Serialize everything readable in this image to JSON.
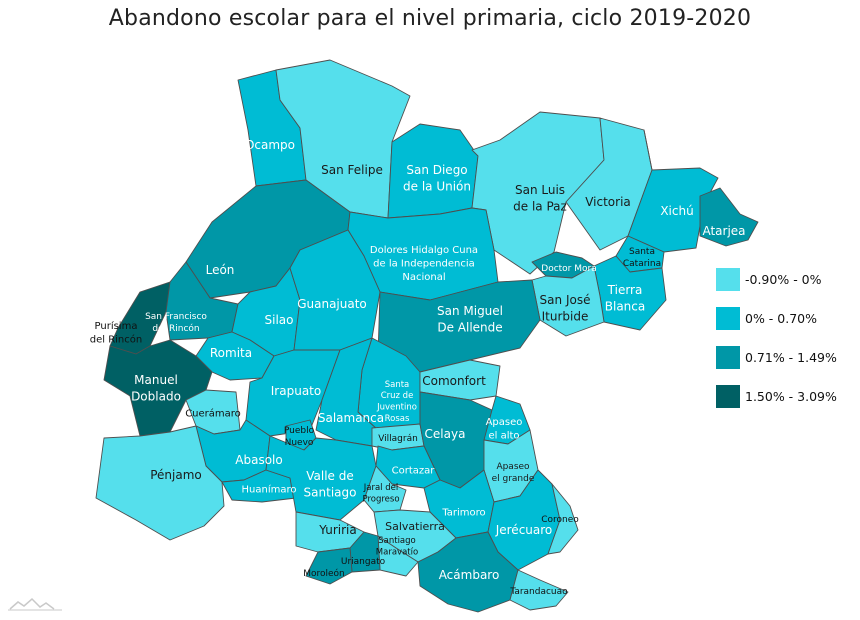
{
  "title": "Abandono escolar para el nivel primaria, ciclo 2019-2020",
  "legend": [
    {
      "label": "-0.90% - 0%",
      "color": "#55dfec"
    },
    {
      "label": "0% - 0.70%",
      "color": "#00bcd4"
    },
    {
      "label": "0.71% - 1.49%",
      "color": "#0097a7"
    },
    {
      "label": "1.50% - 3.09%",
      "color": "#006064"
    }
  ],
  "municipalities": [
    {
      "id": "ocampo",
      "label": "Ocampo",
      "range": 1
    },
    {
      "id": "san-felipe",
      "label": "San Felipe",
      "range": 0
    },
    {
      "id": "san-diego",
      "label": "San Diego\nde la Unión",
      "range": 1
    },
    {
      "id": "san-luis-paz",
      "label": "San Luis\nde la Paz",
      "range": 0
    },
    {
      "id": "victoria",
      "label": "Victoria",
      "range": 0
    },
    {
      "id": "xichu",
      "label": "Xichú",
      "range": 1
    },
    {
      "id": "atarjea",
      "label": "Atarjea",
      "range": 2
    },
    {
      "id": "leon",
      "label": "León",
      "range": 2
    },
    {
      "id": "dolores-hidalgo",
      "label": "Dolores Hidalgo Cuna\nde la Independencia\nNacional",
      "range": 1
    },
    {
      "id": "doctor-mora",
      "label": "Doctor Mora",
      "range": 2
    },
    {
      "id": "santa-catarina",
      "label": "Santa\nCatarina",
      "range": 1
    },
    {
      "id": "tierra-blanca",
      "label": "Tierra\nBlanca",
      "range": 1
    },
    {
      "id": "san-jose-iturbide",
      "label": "San José\nIturbide",
      "range": 0
    },
    {
      "id": "purisima",
      "label": "Purísima\ndel Rincón",
      "range": 3
    },
    {
      "id": "san-francisco",
      "label": "San Francisco\ndel Rincón",
      "range": 2
    },
    {
      "id": "silao",
      "label": "Silao",
      "range": 1
    },
    {
      "id": "guanajuato",
      "label": "Guanajuato",
      "range": 1
    },
    {
      "id": "san-miguel",
      "label": "San Miguel\nDe Allende",
      "range": 2
    },
    {
      "id": "romita",
      "label": "Romita",
      "range": 1
    },
    {
      "id": "manuel-doblado",
      "label": "Manuel\nDoblado",
      "range": 3
    },
    {
      "id": "irapuato",
      "label": "Irapuato",
      "range": 1
    },
    {
      "id": "santa-cruz",
      "label": "Santa\nCruz de\nJuventino\nRosas",
      "range": 1
    },
    {
      "id": "comonfort",
      "label": "Comonfort",
      "range": 0
    },
    {
      "id": "cueramaro",
      "label": "Cuerámaro",
      "range": 0
    },
    {
      "id": "salamanca",
      "label": "Salamanca",
      "range": 1
    },
    {
      "id": "villagran",
      "label": "Villagrán",
      "range": 0
    },
    {
      "id": "celaya",
      "label": "Celaya",
      "range": 2
    },
    {
      "id": "apaseo-alto",
      "label": "Apaseo\nel alto",
      "range": 1
    },
    {
      "id": "pueblo-nuevo",
      "label": "Pueblo\nNuevo",
      "range": 1
    },
    {
      "id": "abasolo",
      "label": "Abasolo",
      "range": 1
    },
    {
      "id": "penjamo",
      "label": "Pénjamo",
      "range": 0
    },
    {
      "id": "cortazar",
      "label": "Cortazar",
      "range": 1
    },
    {
      "id": "apaseo-grande",
      "label": "Apaseo\nel grande",
      "range": 0
    },
    {
      "id": "huanimaro",
      "label": "Huanímaro",
      "range": 1
    },
    {
      "id": "valle-santiago",
      "label": "Valle de\nSantiago",
      "range": 1
    },
    {
      "id": "jaral",
      "label": "Jaral del\nProgreso",
      "range": 0
    },
    {
      "id": "tarimoro",
      "label": "Tarimoro",
      "range": 1
    },
    {
      "id": "jerecuaro",
      "label": "Jerécuaro",
      "range": 1
    },
    {
      "id": "coroneo",
      "label": "Coroneo",
      "range": 0
    },
    {
      "id": "yuriria",
      "label": "Yuriria",
      "range": 0
    },
    {
      "id": "salvatierra",
      "label": "Salvatierra",
      "range": 0
    },
    {
      "id": "santiago-maravatio",
      "label": "Santiago\nMaravatío",
      "range": 0
    },
    {
      "id": "uriangato",
      "label": "Uriangato",
      "range": 2
    },
    {
      "id": "moroleon",
      "label": "Moroleón",
      "range": 2
    },
    {
      "id": "acambaro",
      "label": "Acámbaro",
      "range": 2
    },
    {
      "id": "tarandacuao",
      "label": "Tarandacuao",
      "range": 0
    }
  ]
}
